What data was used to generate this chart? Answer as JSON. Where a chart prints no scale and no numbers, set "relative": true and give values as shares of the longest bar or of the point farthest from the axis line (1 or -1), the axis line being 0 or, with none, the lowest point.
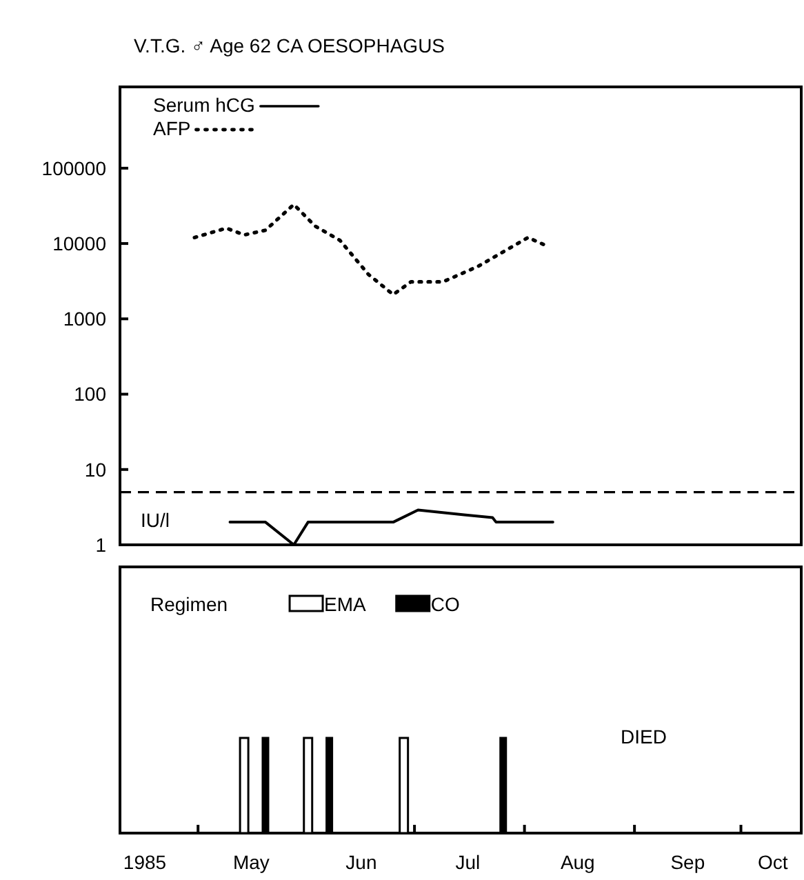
{
  "chart_data": [
    {
      "type": "line",
      "title": "V.T.G. ♂ Age 62 CA OESOPHAGUS",
      "log": "y",
      "legend": "top left",
      "tick_labels": "y",
      "xlim": [
        "1985-04-09",
        "1985-10-18"
      ],
      "ylim": [
        1,
        1200000
      ],
      "yticks": [
        1,
        10,
        100,
        1000,
        10000,
        100000
      ],
      "series": [
        {
          "name": "Serum hCG",
          "color": "#000000",
          "line_style": "solid",
          "x": [
            "1985-05-10",
            "1985-05-20",
            "1985-05-28",
            "1985-06-01",
            "1985-06-25",
            "1985-07-02",
            "1985-07-15",
            "1985-07-23",
            "1985-07-24",
            "1985-08-09"
          ],
          "values": [
            2,
            2,
            1,
            2,
            2,
            2.9,
            2.5,
            2.3,
            2,
            2
          ]
        },
        {
          "name": "AFP",
          "color": "#000000",
          "line_style": "dotted",
          "x": [
            "1985-04-30",
            "1985-05-09",
            "1985-05-14",
            "1985-05-20",
            "1985-05-28",
            "1985-06-03",
            "1985-06-10",
            "1985-06-18",
            "1985-06-25",
            "1985-06-30",
            "1985-07-09",
            "1985-07-19",
            "1985-08-02",
            "1985-08-08"
          ],
          "values": [
            12000,
            16000,
            13000,
            15000,
            33000,
            17000,
            11000,
            3900,
            2100,
            3100,
            3100,
            5000,
            12000,
            9000
          ]
        }
      ],
      "ref_lines": [
        {
          "axis": "y",
          "value": 5,
          "line_style": "dashed"
        }
      ],
      "annotations": [
        "IU/l"
      ]
    },
    {
      "type": "bar",
      "relative": true,
      "legend": "top",
      "legend_title": "Regimen",
      "tick_labels": "x",
      "xlim": [
        "1985-04-09",
        "1985-10-18"
      ],
      "xticks": [
        {
          "value": "1985-04-16",
          "label": "1985"
        },
        {
          "value": "1985-05-01",
          "label": null
        },
        {
          "value": "1985-05-16",
          "label": "May"
        },
        {
          "value": "1985-06-01",
          "label": null
        },
        {
          "value": "1985-06-16",
          "label": "Jun"
        },
        {
          "value": "1985-07-01",
          "label": null
        },
        {
          "value": "1985-07-16",
          "label": "Jul"
        },
        {
          "value": "1985-08-01",
          "label": null
        },
        {
          "value": "1985-08-16",
          "label": "Aug"
        },
        {
          "value": "1985-09-01",
          "label": null
        },
        {
          "value": "1985-09-16",
          "label": "Sep"
        },
        {
          "value": "1985-10-01",
          "label": null
        },
        {
          "value": "1985-10-10",
          "label": "Oct"
        }
      ],
      "series": [
        {
          "name": "EMA",
          "color": "#ffffff",
          "x": [
            "1985-05-14",
            "1985-06-01",
            "1985-06-28"
          ],
          "values": [
            1,
            1,
            1
          ]
        },
        {
          "name": "CO",
          "color": "#000000",
          "x": [
            "1985-05-20",
            "1985-06-07",
            "1985-07-26"
          ],
          "values": [
            1,
            1,
            1
          ]
        }
      ],
      "annotations": [
        "DIED"
      ]
    }
  ]
}
